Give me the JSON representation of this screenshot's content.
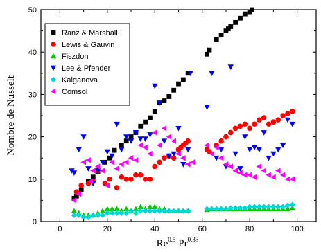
{
  "chart_data": {
    "type": "scatter",
    "title": "",
    "xlabel": {
      "base1": "Re",
      "exp1": "0.5",
      "base2": " Pr",
      "exp2": "0.33"
    },
    "ylabel": "Nombre de Nusselt",
    "xlim": [
      -8,
      108
    ],
    "ylim": [
      0,
      50
    ],
    "xticks": [
      0,
      20,
      40,
      60,
      80,
      100
    ],
    "yticks": [
      0,
      10,
      20,
      30,
      40,
      50
    ],
    "legend_position": "top-left",
    "series": [
      {
        "name": "Ranz & Marshall",
        "marker": "square",
        "color": "#000000",
        "x": [
          6,
          7,
          9,
          12,
          14,
          16,
          19,
          21,
          23,
          26,
          28,
          30,
          32,
          34,
          36,
          38,
          40,
          42,
          44,
          46,
          48,
          50,
          52,
          54,
          62,
          63,
          66,
          68,
          70,
          71,
          72,
          74,
          76,
          78,
          80,
          81
        ],
        "y": [
          5.5,
          6,
          7.5,
          9.5,
          10.5,
          11.8,
          14,
          15,
          16.8,
          18,
          19,
          20,
          21,
          22.5,
          23.5,
          24.5,
          26,
          28,
          28.5,
          29.5,
          31,
          32.5,
          33.5,
          35,
          39.5,
          40.5,
          43,
          44,
          45,
          45.5,
          46,
          47,
          48,
          49,
          49.5,
          50
        ]
      },
      {
        "name": "Lewis & Gauvin",
        "marker": "circle",
        "color": "#ff0000",
        "x": [
          7,
          9,
          12,
          14,
          16,
          19,
          21,
          24,
          26,
          28,
          30,
          32,
          34,
          36,
          38,
          40,
          42,
          44,
          46,
          48,
          50,
          51,
          52,
          53,
          54,
          62,
          63,
          66,
          68,
          70,
          72,
          74,
          76,
          78,
          80,
          82,
          84,
          86,
          88,
          90,
          92,
          94,
          96,
          98
        ],
        "y": [
          7,
          8.5,
          9,
          9.5,
          12,
          9,
          10,
          8,
          10.5,
          10,
          10,
          11,
          11,
          10,
          10,
          13,
          14,
          15,
          15.5,
          15,
          17,
          17.5,
          18,
          18.5,
          19,
          17,
          16.5,
          18,
          19,
          20,
          21,
          22,
          22.5,
          23,
          22,
          23,
          24,
          24.5,
          23,
          23.5,
          24,
          25,
          25.5,
          26
        ]
      },
      {
        "name": "Fiszdon",
        "marker": "triangle-up",
        "color": "#00cc00",
        "x": [
          6,
          8,
          10,
          12,
          14,
          16,
          18,
          20,
          22,
          24,
          26,
          28,
          30,
          32,
          34,
          36,
          38,
          40,
          42,
          44,
          46,
          48,
          50,
          52,
          54,
          62,
          64,
          66,
          68,
          70,
          72,
          74,
          76,
          78,
          80,
          82,
          84,
          86,
          88,
          90,
          92,
          94,
          96,
          98
        ],
        "y": [
          2.5,
          2,
          1.5,
          1.5,
          1.5,
          2,
          2.5,
          3,
          3,
          3,
          2.5,
          3,
          2.5,
          3,
          3.5,
          3,
          3.5,
          3.5,
          3,
          3,
          2.5,
          2.5,
          2.5,
          2.5,
          2.5,
          2.8,
          3,
          3,
          3,
          3,
          3,
          3,
          3,
          3,
          3,
          3,
          3,
          3,
          3,
          3,
          3,
          3,
          3,
          3.2
        ]
      },
      {
        "name": "Lee & Pfender",
        "marker": "triangle-down",
        "color": "#0000ff",
        "x": [
          5,
          6,
          8,
          10,
          12,
          14,
          16,
          18,
          20,
          22,
          24,
          26,
          28,
          30,
          32,
          34,
          36,
          38,
          40,
          42,
          44,
          46,
          48,
          50,
          52,
          54,
          55,
          62,
          64,
          66,
          68,
          70,
          72,
          74,
          76,
          78,
          80,
          82,
          84,
          86,
          88,
          90,
          92,
          94,
          96,
          98
        ],
        "y": [
          12,
          11.5,
          17,
          20,
          12.5,
          9,
          12,
          14,
          16.5,
          15.5,
          23,
          17,
          20,
          19,
          21,
          19.5,
          19.5,
          20.5,
          32,
          28,
          19,
          15.5,
          16,
          22,
          13.5,
          17,
          35,
          27,
          35,
          15,
          17,
          13,
          36.5,
          16,
          12.5,
          20,
          17,
          17.5,
          17,
          21,
          15,
          16,
          17,
          18,
          24,
          23
        ]
      },
      {
        "name": "Kalganova",
        "marker": "diamond",
        "color": "#00d8d8",
        "x": [
          6,
          8,
          10,
          12,
          14,
          16,
          18,
          20,
          22,
          24,
          26,
          28,
          30,
          32,
          34,
          36,
          38,
          40,
          42,
          44,
          46,
          48,
          50,
          52,
          54,
          62,
          64,
          66,
          68,
          70,
          72,
          74,
          76,
          78,
          80,
          82,
          84,
          86,
          88,
          90,
          92,
          94,
          96,
          98
        ],
        "y": [
          1.5,
          1.5,
          1,
          1,
          1.5,
          1.5,
          1.5,
          2,
          2,
          2,
          2,
          2,
          2.5,
          2,
          2.5,
          2.5,
          2.5,
          2.5,
          2.5,
          2.5,
          2.5,
          2.5,
          2.5,
          2.5,
          2.5,
          3,
          3,
          3,
          3,
          3,
          3.2,
          3.2,
          3.2,
          3.2,
          3.5,
          3.5,
          3.5,
          3.5,
          3.5,
          3.5,
          3.5,
          3.5,
          3.8,
          4
        ]
      },
      {
        "name": "Comsol",
        "marker": "triangle-left",
        "color": "#ff00ff",
        "x": [
          6,
          8,
          10,
          12,
          13,
          14,
          16,
          18,
          20,
          22,
          24,
          26,
          28,
          30,
          32,
          34,
          36,
          38,
          40,
          42,
          44,
          46,
          48,
          50,
          52,
          54,
          56,
          62,
          64,
          66,
          68,
          70,
          72,
          74,
          76,
          78,
          80,
          82,
          84,
          86,
          88,
          90,
          92,
          94,
          96,
          98
        ],
        "y": [
          5,
          6.5,
          14,
          14.5,
          9.5,
          12,
          13,
          12,
          8.5,
          14,
          12.5,
          13.5,
          14,
          15,
          14.5,
          18,
          17.5,
          16,
          21,
          18,
          22,
          20,
          19,
          16,
          15,
          13.5,
          14,
          18,
          16,
          17.5,
          15,
          13.5,
          13,
          12,
          11.5,
          11,
          11,
          10.5,
          13,
          12,
          11,
          10.5,
          12,
          11,
          10,
          10
        ]
      }
    ]
  }
}
